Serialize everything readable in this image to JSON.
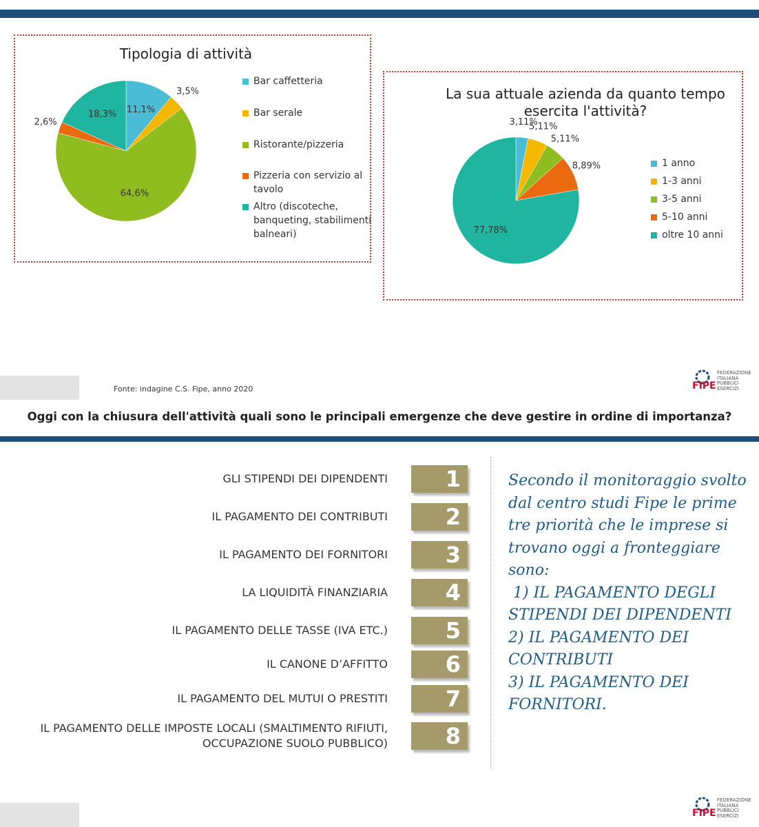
{
  "chart_data": [
    {
      "type": "pie",
      "title": "Tipologia di attività",
      "categories": [
        "Bar caffetteria",
        "Bar serale",
        "Ristorante/pizzeria",
        "Pizzeria con servizio al tavolo",
        "Altro (discoteche, banqueting, stabilimenti balneari)"
      ],
      "values": [
        11.1,
        3.5,
        64.6,
        2.6,
        18.3
      ],
      "value_labels": [
        "11,1%",
        "3,5%",
        "64,6%",
        "2,6%",
        "18,3%"
      ],
      "colors": [
        "#4bbcd6",
        "#f5b800",
        "#8fbc1f",
        "#eb6a10",
        "#1fb5a0"
      ]
    },
    {
      "type": "pie",
      "title": "La sua attuale azienda da quanto tempo esercita l'attività?",
      "categories": [
        "1 anno",
        "1-3 anni",
        "3-5 anni",
        "5-10 anni",
        "oltre 10 anni"
      ],
      "values": [
        3.11,
        5.11,
        5.11,
        8.89,
        77.78
      ],
      "value_labels": [
        "3,11%",
        "5,11%",
        "5,11%",
        "8,89%",
        "77,78%"
      ],
      "colors": [
        "#4bbcd6",
        "#f5b800",
        "#8fbc1f",
        "#eb6a10",
        "#1fb5a0"
      ]
    }
  ],
  "source": "Fonte: indagine C.S. Fipe, anno 2020",
  "logo": {
    "acronym": "FIPE",
    "lines": [
      "FEDERAZIONE",
      "ITALIANA",
      "PUBBLICI",
      "ESERCIZI"
    ]
  },
  "question": "Oggi con la chiusura dell'attività quali sono le principali emergenze che deve gestire in ordine di importanza?",
  "ranking": [
    {
      "label": "GLI STIPENDI DEI DIPENDENTI",
      "rank": 1
    },
    {
      "label": "IL PAGAMENTO DEI CONTRIBUTI",
      "rank": 2
    },
    {
      "label": "IL PAGAMENTO DEI FORNITORI",
      "rank": 3
    },
    {
      "label": "LA LIQUIDITÀ FINANZIARIA",
      "rank": 4
    },
    {
      "label": "IL PAGAMENTO DELLE TASSE (IVA ETC.)",
      "rank": 5
    },
    {
      "label": "IL CANONE D’AFFITTO",
      "rank": 6
    },
    {
      "label": "IL PAGAMENTO DEL MUTUI O PRESTITI",
      "rank": 7
    },
    {
      "label": "IL PAGAMENTO DELLE IMPOSTE LOCALI (SMALTIMENTO  RIFIUTI, OCCUPAZIONE SUOLO PUBBLICO)",
      "rank": 8
    }
  ],
  "note": [
    "Secondo il monitoraggio svolto",
    "dal centro studi Fipe le prime",
    "tre priorità che le imprese si",
    "trovano oggi a fronteggiare",
    "sono:",
    " 1) IL PAGAMENTO DEGLI",
    "STIPENDI DEI DIPENDENTI",
    "2) IL PAGAMENTO DEI",
    "CONTRIBUTI",
    "3) IL PAGAMENTO DEI",
    "FORNITORI."
  ]
}
